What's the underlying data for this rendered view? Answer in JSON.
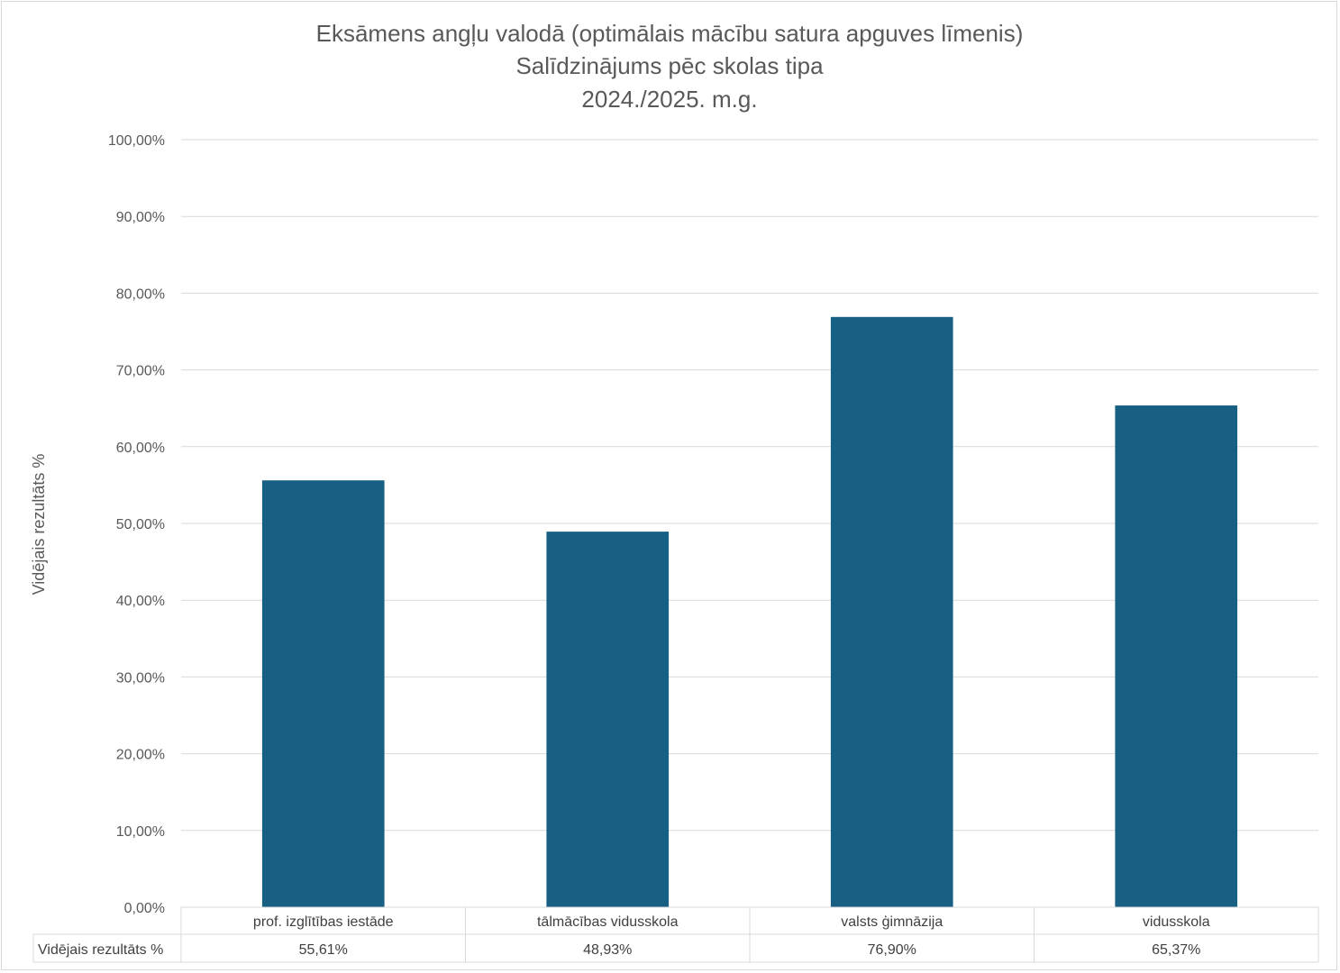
{
  "chart_data": {
    "type": "bar",
    "title": [
      "Eksāmens angļu valodā (optimālais mācību satura apguves līmenis)",
      "Salīdzinājums pēc skolas tipa",
      "2024./2025. m.g."
    ],
    "ylabel": "Vidējais rezultāts %",
    "xlabel": "",
    "ylim": [
      0,
      100
    ],
    "yticks": [
      0,
      10,
      20,
      30,
      40,
      50,
      60,
      70,
      80,
      90,
      100
    ],
    "ytick_labels": [
      "0,00%",
      "10,00%",
      "20,00%",
      "30,00%",
      "40,00%",
      "50,00%",
      "60,00%",
      "70,00%",
      "80,00%",
      "90,00%",
      "100,00%"
    ],
    "categories": [
      "prof. izglītības iestāde",
      "tālmācības vidusskola",
      "valsts ģimnāzija",
      "vidusskola"
    ],
    "series": [
      {
        "name": "Vidējais rezultāts %",
        "values": [
          55.61,
          48.93,
          76.9,
          65.37
        ],
        "value_labels": [
          "55,61%",
          "48,93%",
          "76,90%",
          "65,37%"
        ]
      }
    ],
    "grid": true,
    "legend": "data table below plot",
    "bar_color": "#176083",
    "grid_color": "#d9d9d9"
  }
}
